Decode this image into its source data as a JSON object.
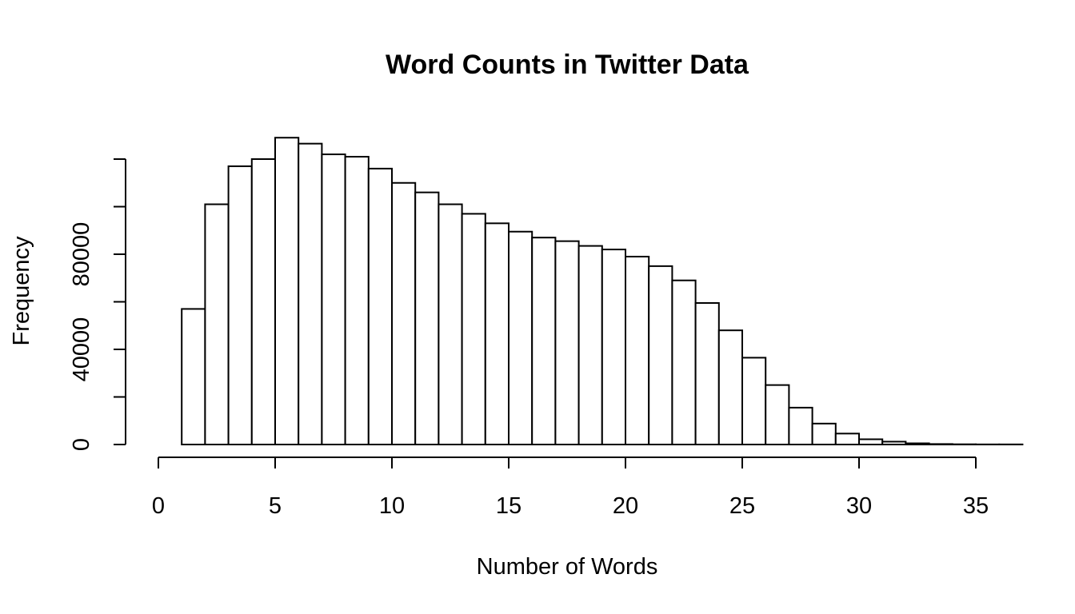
{
  "chart_data": {
    "type": "bar",
    "title": "Word Counts in Twitter Data",
    "xlabel": "Number of Words",
    "ylabel": "Frequency",
    "xlim": [
      0,
      36.5
    ],
    "ylim": [
      0,
      120000
    ],
    "grid": false,
    "x_ticks": [
      0,
      5,
      10,
      15,
      20,
      25,
      30,
      35
    ],
    "x_tick_labels": [
      "0",
      "5",
      "10",
      "15",
      "20",
      "25",
      "30",
      "35"
    ],
    "y_ticks": [
      0,
      20000,
      40000,
      60000,
      80000,
      100000,
      120000
    ],
    "y_tick_labels": [
      "0",
      "",
      "40000",
      "",
      "80000",
      "",
      ""
    ],
    "bin_edges": [
      1,
      2,
      3,
      4,
      5,
      6,
      7,
      8,
      9,
      10,
      11,
      12,
      13,
      14,
      15,
      16,
      17,
      18,
      19,
      20,
      21,
      22,
      23,
      24,
      25,
      26,
      27,
      28,
      29,
      30,
      31,
      32,
      33,
      34,
      35,
      36,
      37
    ],
    "values": [
      57000,
      101000,
      117000,
      120000,
      129000,
      126500,
      122000,
      121000,
      116000,
      110000,
      106000,
      101000,
      97000,
      93000,
      89500,
      87000,
      85500,
      83500,
      82000,
      79000,
      75000,
      69000,
      59500,
      48000,
      36500,
      25000,
      15500,
      8800,
      4600,
      2200,
      1200,
      500,
      200,
      100,
      50,
      50
    ]
  }
}
